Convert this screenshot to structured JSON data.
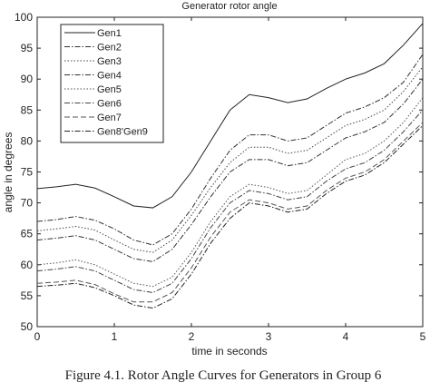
{
  "chart_data": {
    "type": "line",
    "title": "Generator rotor angle",
    "x_label": "time in seconds",
    "y_label": "angle in degrees",
    "caption": "Figure 4.1. Rotor Angle Curves for Generators in Group 6",
    "x": [
      0,
      0.25,
      0.5,
      0.75,
      1,
      1.25,
      1.5,
      1.75,
      2,
      2.25,
      2.5,
      2.75,
      3,
      3.25,
      3.5,
      3.75,
      4,
      4.25,
      4.5,
      4.75,
      5
    ],
    "series": [
      {
        "name": "Gen1",
        "color": "#222222",
        "dash": "solid",
        "values": [
          72.3,
          72.6,
          73,
          72.4,
          71,
          69.5,
          69.2,
          71,
          75,
          80,
          85,
          87.5,
          87,
          86.2,
          86.8,
          88.5,
          90,
          91,
          92.5,
          95.5,
          99
        ]
      },
      {
        "name": "Gen2",
        "color": "#333333",
        "dash": "dashdot",
        "values": [
          67,
          67.3,
          67.8,
          67.2,
          65.8,
          64,
          63.2,
          65,
          69,
          74,
          78.5,
          81,
          81,
          80,
          80.5,
          82.5,
          84.5,
          85.5,
          87,
          89.5,
          94
        ]
      },
      {
        "name": "Gen3",
        "color": "#444444",
        "dash": "dotted",
        "values": [
          65.5,
          65.8,
          66.2,
          65.6,
          64,
          62.5,
          62,
          64,
          68,
          72.5,
          76.5,
          79,
          79,
          78,
          78.5,
          80.5,
          82.5,
          83.5,
          85,
          88,
          92
        ]
      },
      {
        "name": "Gen4",
        "color": "#333333",
        "dash": "dashdot",
        "values": [
          64,
          64.3,
          64.7,
          64,
          62.5,
          61,
          60.5,
          62.5,
          66.5,
          71,
          75,
          77,
          77,
          76,
          76.5,
          78.5,
          80.5,
          81.5,
          83,
          86,
          90
        ]
      },
      {
        "name": "Gen5",
        "color": "#555555",
        "dash": "dotted",
        "values": [
          60,
          60.3,
          60.8,
          60,
          58.5,
          57,
          56.5,
          58,
          62,
          67,
          71,
          73,
          72.5,
          71.5,
          72,
          74.5,
          77,
          78,
          80,
          83,
          87
        ]
      },
      {
        "name": "Gen6",
        "color": "#444444",
        "dash": "dashdot",
        "values": [
          59,
          59.3,
          59.7,
          59,
          57.5,
          56,
          55.5,
          57,
          61,
          66,
          70,
          72,
          71.5,
          70.5,
          71,
          73.5,
          75.5,
          76.5,
          78.5,
          81.5,
          85
        ]
      },
      {
        "name": "Gen7",
        "color": "#555555",
        "dash": "dashed",
        "values": [
          57,
          57.2,
          57.5,
          56.8,
          55.3,
          54,
          54,
          55.5,
          59.5,
          64.5,
          68.5,
          70.5,
          70,
          69,
          69.5,
          72,
          74,
          75,
          77,
          80,
          83
        ]
      },
      {
        "name": "Gen8'Gen9",
        "color": "#222222",
        "dash": "dashdot",
        "values": [
          56.5,
          56.7,
          57,
          56.3,
          55,
          53.5,
          53,
          54.5,
          58.5,
          63.5,
          67.5,
          70,
          69.5,
          68.5,
          69,
          71.5,
          73.5,
          74.5,
          76.5,
          79.5,
          82.5
        ]
      }
    ],
    "xlim": [
      0,
      5
    ],
    "xticks": [
      0,
      1,
      2,
      3,
      4,
      5
    ],
    "ylim": [
      50,
      100
    ],
    "yticks": [
      50,
      55,
      60,
      65,
      70,
      75,
      80,
      85,
      90,
      95,
      100
    ],
    "grid": false,
    "legend": "upper left"
  }
}
